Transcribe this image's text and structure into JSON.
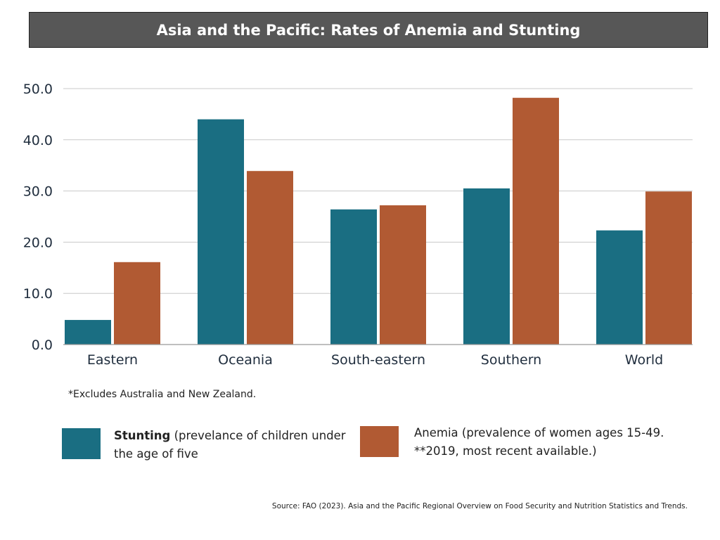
{
  "chart_data": {
    "type": "bar",
    "title": "Asia and the Pacific: Rates of Anemia and Stunting",
    "categories": [
      "Eastern",
      "Oceania",
      "South-eastern",
      "Southern",
      "World"
    ],
    "series": [
      {
        "name": "Stunting",
        "color": "#1a6e82",
        "values": [
          4.8,
          44.0,
          26.4,
          30.5,
          22.3
        ]
      },
      {
        "name": "Anemia",
        "color": "#b15a33",
        "values": [
          16.1,
          33.9,
          27.2,
          48.2,
          29.9
        ]
      }
    ],
    "ylim": [
      0,
      50
    ],
    "yticks": [
      "0.0",
      "10.0",
      "20.0",
      "30.0",
      "40.0",
      "50.0"
    ],
    "grid": true,
    "legend_position": "bottom"
  },
  "note": "*Excludes Australia and New Zealand.",
  "legend": {
    "stunting_bold": "Stunting",
    "stunting_rest": " (prevelance of children under the age of five",
    "anemia": "Anemia (prevalence of women ages 15-49. **2019, most recent available.)"
  },
  "source": "Source: FAO (2023). Asia and the Pacific Regional Overview on Food Security and Nutrition Statistics and Trends."
}
